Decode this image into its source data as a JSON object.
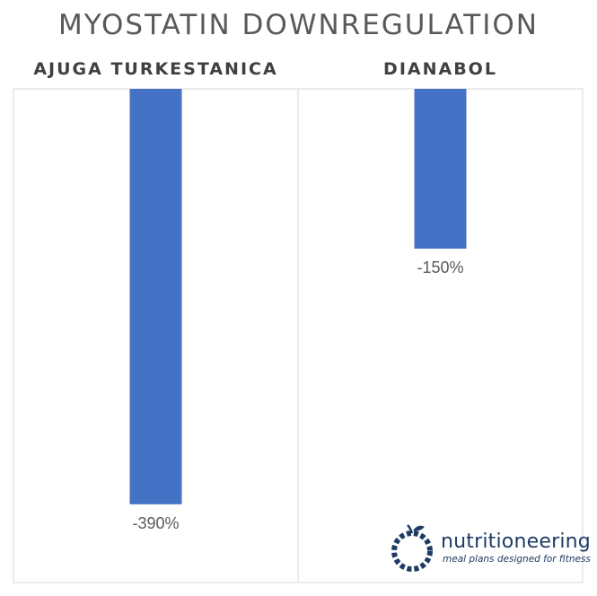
{
  "chart_data": {
    "type": "bar",
    "title": "MYOSTATIN DOWNREGULATION",
    "categories": [
      "AJUGA TURKESTANICA",
      "DIANABOL"
    ],
    "values": [
      -390,
      -150
    ],
    "value_labels": [
      "-390%",
      "-150%"
    ],
    "unit": "%",
    "ylim": [
      -400,
      0
    ],
    "bar_color": "#4472c4",
    "grid": false,
    "legend": "none"
  },
  "brand": {
    "name": "nutritioneering",
    "tagline": "meal plans designed for fitness",
    "color": "#1f3b63"
  }
}
